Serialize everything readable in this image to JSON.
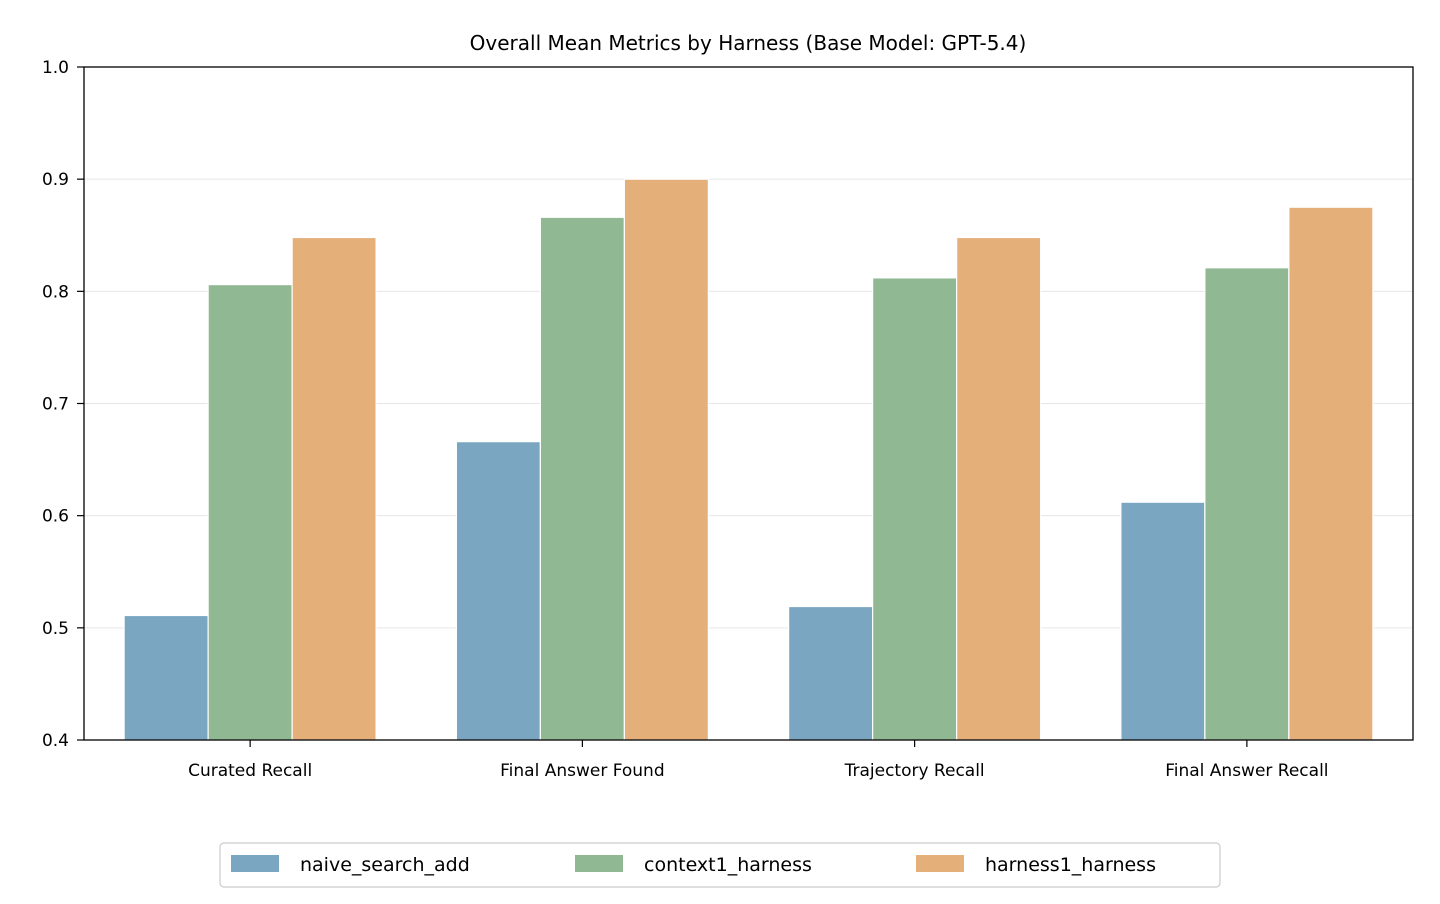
{
  "chart_data": {
    "type": "bar",
    "title": "Overall Mean Metrics by Harness (Base Model: GPT-5.4)",
    "xlabel": "",
    "ylabel": "",
    "ylim": [
      0.4,
      1.0
    ],
    "yticks": [
      "0.4",
      "0.5",
      "0.6",
      "0.7",
      "0.8",
      "0.9",
      "1.0"
    ],
    "ytick_values": [
      0.4,
      0.5,
      0.6,
      0.7,
      0.8,
      0.9,
      1.0
    ],
    "categories": [
      "Curated Recall",
      "Final Answer Found",
      "Trajectory Recall",
      "Final Answer Recall"
    ],
    "series": [
      {
        "name": "naive_search_add",
        "color": "#7ba6c2",
        "values": [
          0.511,
          0.666,
          0.519,
          0.612
        ]
      },
      {
        "name": "context1_harness",
        "color": "#8fb893",
        "values": [
          0.806,
          0.866,
          0.812,
          0.821
        ]
      },
      {
        "name": "harness1_harness",
        "color": "#e5af7a",
        "values": [
          0.848,
          0.9,
          0.848,
          0.875
        ]
      }
    ],
    "grid": "horizontal",
    "legend_position": "bottom-center"
  }
}
